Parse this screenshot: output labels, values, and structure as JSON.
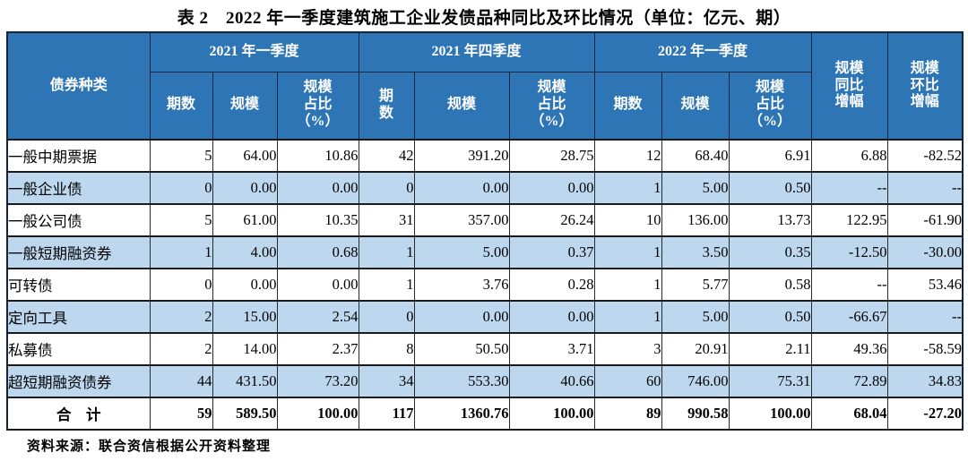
{
  "title": "表 2　2022 年一季度建筑施工企业发债品种同比及环比情况（单位：亿元、期）",
  "source_note": "资料来源：联合资信根据公开资料整理",
  "colors": {
    "header_blue": "#2E75B6",
    "stripe_blue": "#BDD7EE",
    "header_text": "#FFFFFF",
    "border_dark": "#14243C"
  },
  "table": {
    "corner_header": "债券种类",
    "groups": [
      {
        "label": "2021 年一季度",
        "cols": [
          "期数",
          "规模",
          "规模\n占比\n（%）"
        ]
      },
      {
        "label": "2021 年四季度",
        "cols": [
          "期\n数",
          "规模",
          "规模\n占比\n（%）"
        ]
      },
      {
        "label": "2022 年一季度",
        "cols": [
          "期数",
          "规模",
          "规模\n占比\n（%）"
        ]
      }
    ],
    "tail_headers": [
      "规模\n同比\n增幅",
      "规模\n环比\n增幅"
    ],
    "rows": [
      {
        "name": "一般中期票据",
        "values": [
          "5",
          "64.00",
          "10.86",
          "42",
          "391.20",
          "28.75",
          "12",
          "68.40",
          "6.91",
          "6.88",
          "-82.52"
        ]
      },
      {
        "name": "一般企业债",
        "values": [
          "0",
          "0.00",
          "0.00",
          "0",
          "0.00",
          "0.00",
          "1",
          "5.00",
          "0.50",
          "--",
          "--"
        ]
      },
      {
        "name": "一般公司债",
        "values": [
          "5",
          "61.00",
          "10.35",
          "31",
          "357.00",
          "26.24",
          "10",
          "136.00",
          "13.73",
          "122.95",
          "-61.90"
        ]
      },
      {
        "name": "一般短期融资券",
        "values": [
          "1",
          "4.00",
          "0.68",
          "1",
          "5.00",
          "0.37",
          "1",
          "3.50",
          "0.35",
          "-12.50",
          "-30.00"
        ]
      },
      {
        "name": "可转债",
        "values": [
          "0",
          "0.00",
          "0.00",
          "1",
          "3.76",
          "0.28",
          "1",
          "5.77",
          "0.58",
          "--",
          "53.46"
        ]
      },
      {
        "name": "定向工具",
        "values": [
          "2",
          "15.00",
          "2.54",
          "0",
          "0.00",
          "0.00",
          "1",
          "5.00",
          "0.50",
          "-66.67",
          "--"
        ]
      },
      {
        "name": "私募债",
        "values": [
          "2",
          "14.00",
          "2.37",
          "8",
          "50.50",
          "3.71",
          "3",
          "20.91",
          "2.11",
          "49.36",
          "-58.59"
        ]
      },
      {
        "name": "超短期融资债券",
        "values": [
          "44",
          "431.50",
          "73.20",
          "34",
          "553.30",
          "40.66",
          "60",
          "746.00",
          "75.31",
          "72.89",
          "34.83"
        ]
      },
      {
        "name": "合　计",
        "total": true,
        "values": [
          "59",
          "589.50",
          "100.00",
          "117",
          "1360.76",
          "100.00",
          "89",
          "990.58",
          "100.00",
          "68.04",
          "-27.20"
        ]
      }
    ]
  }
}
